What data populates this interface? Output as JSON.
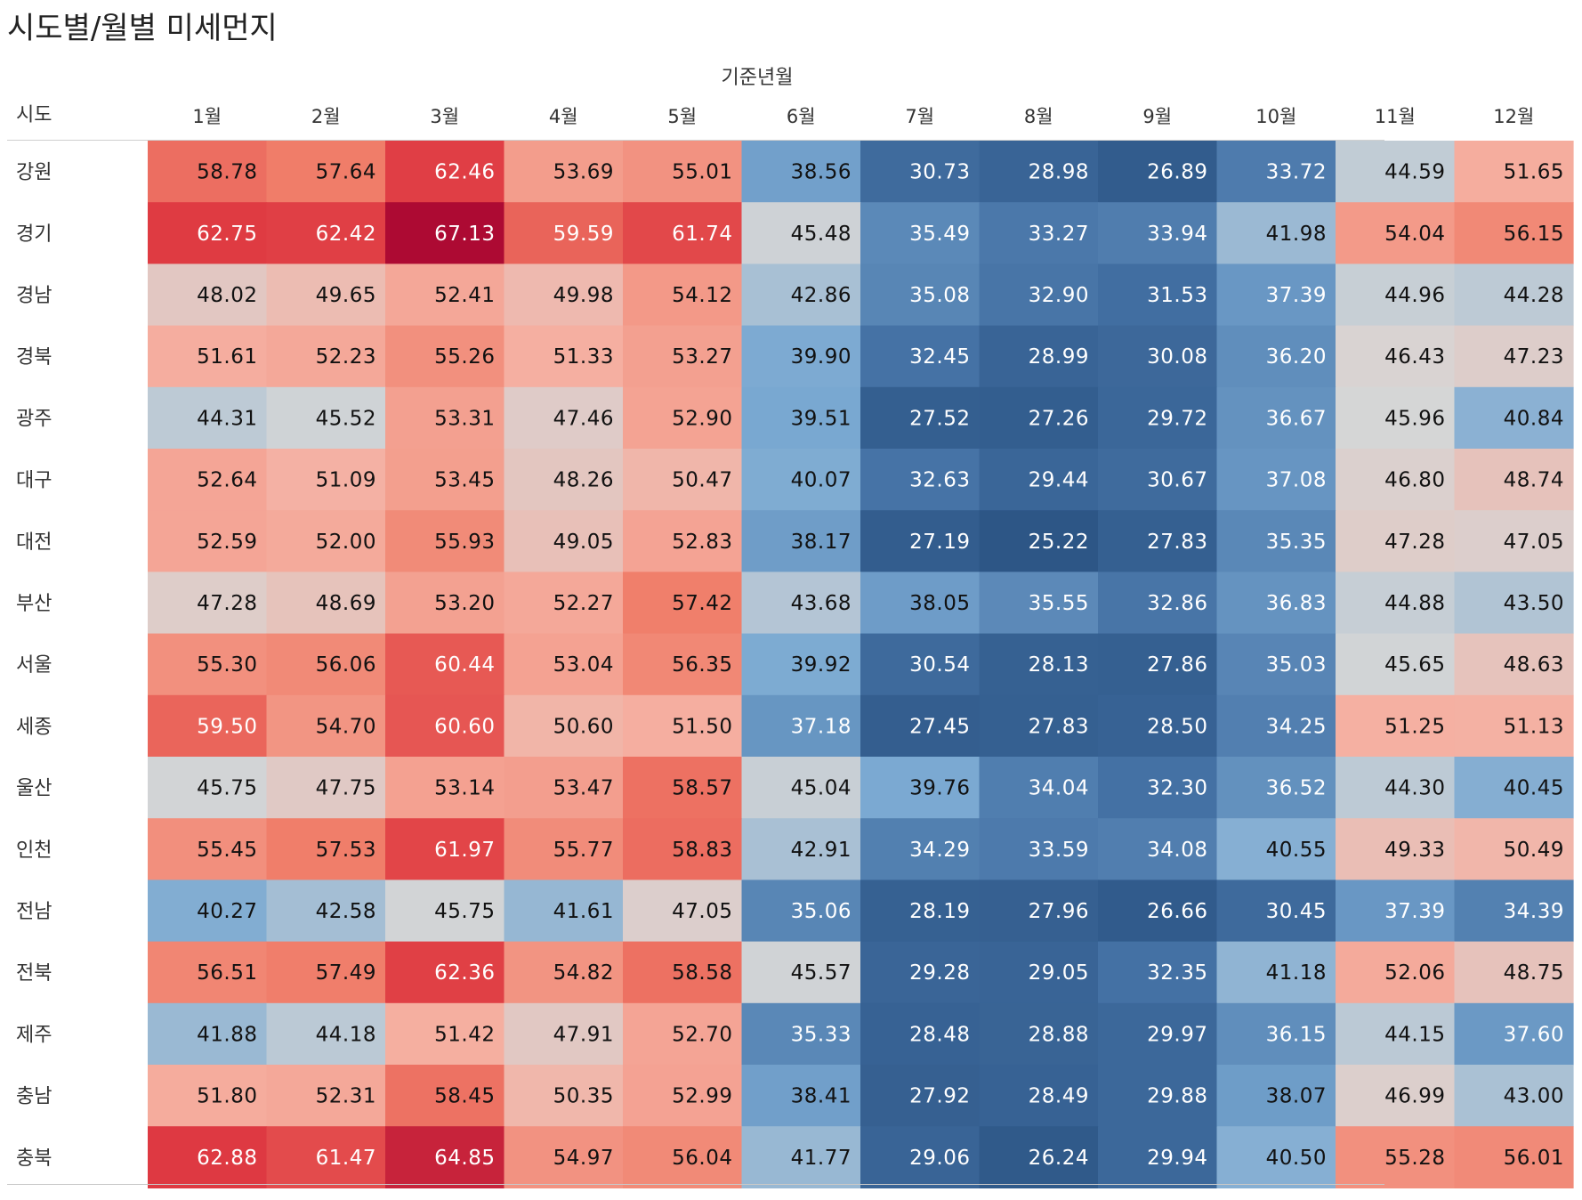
{
  "title": "시도별/월별 미세먼지",
  "chart_data": {
    "type": "heatmap",
    "title": "시도별/월별 미세먼지",
    "column_group_label": "기준년월",
    "row_header_label": "시도",
    "columns": [
      "1월",
      "2월",
      "3월",
      "4월",
      "5월",
      "6월",
      "7월",
      "8월",
      "9월",
      "10월",
      "11월",
      "12월"
    ],
    "rows": [
      "강원",
      "경기",
      "경남",
      "경북",
      "광주",
      "대구",
      "대전",
      "부산",
      "서울",
      "세종",
      "울산",
      "인천",
      "전남",
      "전북",
      "제주",
      "충남",
      "충북"
    ],
    "values": [
      [
        "58.78",
        "57.64",
        "62.46",
        "53.69",
        "55.01",
        "38.56",
        "30.73",
        "28.98",
        "26.89",
        "33.72",
        "44.59",
        "51.65"
      ],
      [
        "62.75",
        "62.42",
        "67.13",
        "59.59",
        "61.74",
        "45.48",
        "35.49",
        "33.27",
        "33.94",
        "41.98",
        "54.04",
        "56.15"
      ],
      [
        "48.02",
        "49.65",
        "52.41",
        "49.98",
        "54.12",
        "42.86",
        "35.08",
        "32.90",
        "31.53",
        "37.39",
        "44.96",
        "44.28"
      ],
      [
        "51.61",
        "52.23",
        "55.26",
        "51.33",
        "53.27",
        "39.90",
        "32.45",
        "28.99",
        "30.08",
        "36.20",
        "46.43",
        "47.23"
      ],
      [
        "44.31",
        "45.52",
        "53.31",
        "47.46",
        "52.90",
        "39.51",
        "27.52",
        "27.26",
        "29.72",
        "36.67",
        "45.96",
        "40.84"
      ],
      [
        "52.64",
        "51.09",
        "53.45",
        "48.26",
        "50.47",
        "40.07",
        "32.63",
        "29.44",
        "30.67",
        "37.08",
        "46.80",
        "48.74"
      ],
      [
        "52.59",
        "52.00",
        "55.93",
        "49.05",
        "52.83",
        "38.17",
        "27.19",
        "25.22",
        "27.83",
        "35.35",
        "47.28",
        "47.05"
      ],
      [
        "47.28",
        "48.69",
        "53.20",
        "52.27",
        "57.42",
        "43.68",
        "38.05",
        "35.55",
        "32.86",
        "36.83",
        "44.88",
        "43.50"
      ],
      [
        "55.30",
        "56.06",
        "60.44",
        "53.04",
        "56.35",
        "39.92",
        "30.54",
        "28.13",
        "27.86",
        "35.03",
        "45.65",
        "48.63"
      ],
      [
        "59.50",
        "54.70",
        "60.60",
        "50.60",
        "51.50",
        "37.18",
        "27.45",
        "27.83",
        "28.50",
        "34.25",
        "51.25",
        "51.13"
      ],
      [
        "45.75",
        "47.75",
        "53.14",
        "53.47",
        "58.57",
        "45.04",
        "39.76",
        "34.04",
        "32.30",
        "36.52",
        "44.30",
        "40.45"
      ],
      [
        "55.45",
        "57.53",
        "61.97",
        "55.77",
        "58.83",
        "42.91",
        "34.29",
        "33.59",
        "34.08",
        "40.55",
        "49.33",
        "50.49"
      ],
      [
        "40.27",
        "42.58",
        "45.75",
        "41.61",
        "47.05",
        "35.06",
        "28.19",
        "27.96",
        "26.66",
        "30.45",
        "37.39",
        "34.39"
      ],
      [
        "56.51",
        "57.49",
        "62.36",
        "54.82",
        "58.58",
        "45.57",
        "29.28",
        "29.05",
        "32.35",
        "41.18",
        "52.06",
        "48.75"
      ],
      [
        "41.88",
        "44.18",
        "51.42",
        "47.91",
        "52.70",
        "35.33",
        "28.48",
        "28.88",
        "29.97",
        "36.15",
        "44.15",
        "37.60"
      ],
      [
        "51.80",
        "52.31",
        "58.45",
        "50.35",
        "52.99",
        "38.41",
        "27.92",
        "28.49",
        "29.88",
        "38.07",
        "46.99",
        "43.00"
      ],
      [
        "62.88",
        "61.47",
        "64.85",
        "54.97",
        "56.04",
        "41.77",
        "29.06",
        "26.24",
        "29.94",
        "40.50",
        "55.28",
        "56.01"
      ]
    ],
    "color_scale": {
      "type": "diverging",
      "low": "#2c5585",
      "mid": "#d6d6d6",
      "high": "#ad0a33",
      "domain": [
        25,
        46,
        67
      ]
    }
  }
}
